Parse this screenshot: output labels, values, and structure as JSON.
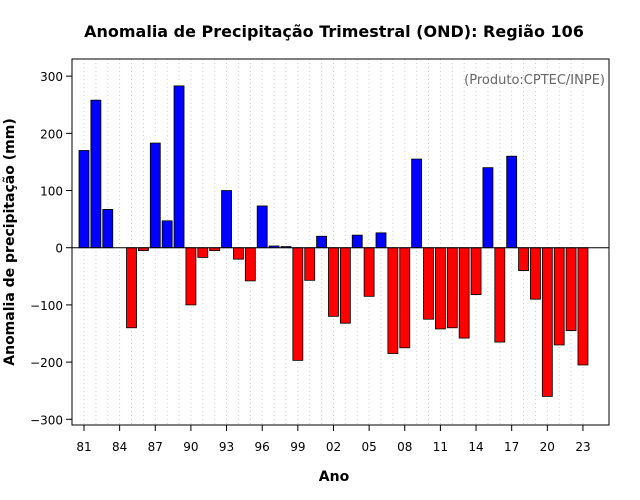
{
  "chart_data": {
    "type": "bar",
    "title": "Anomalia de Precipitação Trimestral (OND): Região 106",
    "credit": "(Produto:CPTEC/INPE)",
    "xlabel": "Ano",
    "ylabel": "Anomalia de precipitação (mm)",
    "ylim": [
      -310,
      330
    ],
    "yticks": [
      -300,
      -200,
      -100,
      0,
      100,
      200,
      300
    ],
    "grid": "vertical dotted",
    "legend": "none",
    "colors": {
      "positive": "#0000ff",
      "negative": "#ff0000",
      "zero_line": "#000000",
      "grid": "#cccccc"
    },
    "x_tick_labels": [
      "81",
      "84",
      "87",
      "90",
      "93",
      "96",
      "99",
      "02",
      "05",
      "08",
      "11",
      "14",
      "17",
      "20",
      "23"
    ],
    "categories": [
      "1981",
      "1982",
      "1983",
      "1984",
      "1985",
      "1986",
      "1987",
      "1988",
      "1989",
      "1990",
      "1991",
      "1992",
      "1993",
      "1994",
      "1995",
      "1996",
      "1997",
      "1998",
      "1999",
      "2000",
      "2001",
      "2002",
      "2003",
      "2004",
      "2005",
      "2006",
      "2007",
      "2008",
      "2009",
      "2010",
      "2011",
      "2012",
      "2013",
      "2014",
      "2015",
      "2016",
      "2017",
      "2018",
      "2019",
      "2020",
      "2021",
      "2022",
      "2023"
    ],
    "values": [
      170,
      258,
      67,
      0,
      -140,
      -5,
      183,
      47,
      283,
      -100,
      -17,
      -5,
      100,
      -20,
      -58,
      73,
      3,
      2,
      -197,
      -57,
      20,
      -120,
      -132,
      22,
      -85,
      26,
      -185,
      -175,
      155,
      -125,
      -142,
      -140,
      -158,
      -82,
      140,
      -165,
      160,
      -40,
      -90,
      -260,
      -170,
      -145,
      -205
    ]
  }
}
